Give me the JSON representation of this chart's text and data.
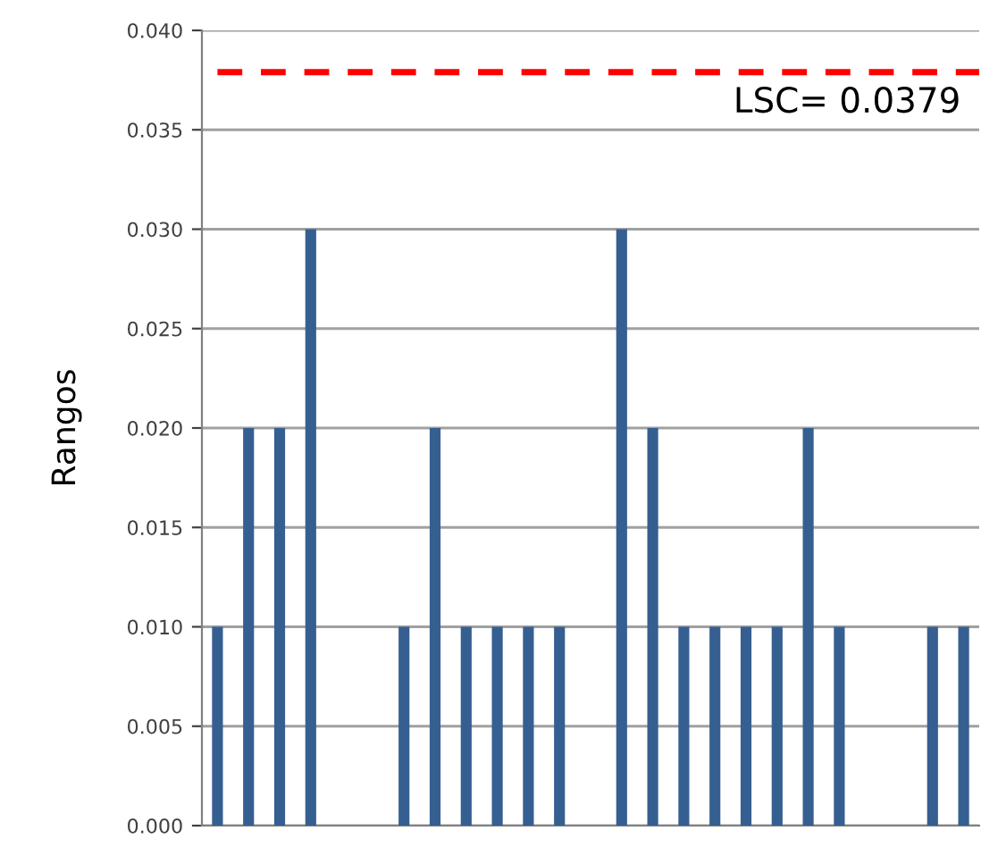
{
  "chart_data": {
    "type": "bar",
    "ylabel": "Rangos",
    "categories": [
      null,
      null,
      null,
      null,
      null,
      null,
      null,
      null,
      null,
      null,
      null,
      null,
      null,
      null,
      null,
      null,
      null,
      null,
      null,
      null,
      null,
      null,
      null,
      null,
      null
    ],
    "values": [
      0.01,
      0.02,
      0.02,
      0.03,
      0,
      0,
      0.01,
      0.02,
      0.01,
      0.01,
      0.01,
      0.01,
      0,
      0.03,
      0.02,
      0.01,
      0.01,
      0.01,
      0.01,
      0.02,
      0.01,
      0,
      0,
      0.01,
      0.01
    ],
    "color": "#365f91",
    "ylim": [
      0,
      0.04
    ],
    "yticks": [
      {
        "value": 0,
        "label": "0.000"
      },
      {
        "value": 0.005,
        "label": "0.005"
      },
      {
        "value": 0.01,
        "label": "0.010"
      },
      {
        "value": 0.015,
        "label": "0.015"
      },
      {
        "value": 0.02,
        "label": "0.020"
      },
      {
        "value": 0.025,
        "label": "0.025"
      },
      {
        "value": 0.03,
        "label": "0.030"
      },
      {
        "value": 0.035,
        "label": "0.035"
      },
      {
        "value": 0.04,
        "label": "0.040"
      }
    ],
    "grid": "y",
    "ref_lines": [
      {
        "axis": "y",
        "value": 0.0379,
        "label": "LSC= 0.0379",
        "color": "#ff0000",
        "line_style": "dashed"
      }
    ]
  }
}
